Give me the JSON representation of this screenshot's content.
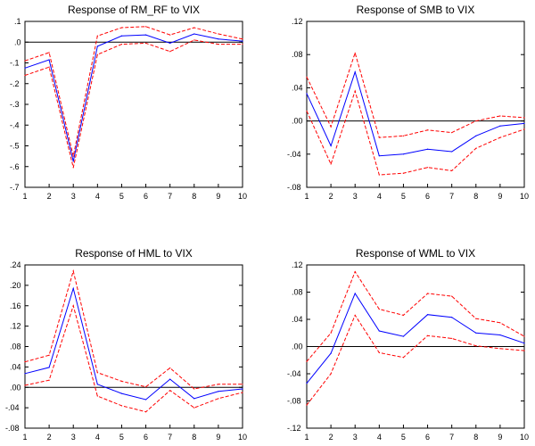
{
  "chart_data": [
    {
      "type": "line",
      "title": "Response of RM_RF to VIX",
      "x": [
        1,
        2,
        3,
        4,
        5,
        6,
        7,
        8,
        9,
        10
      ],
      "ylim": [
        -0.7,
        0.1
      ],
      "yticks": [
        ".1",
        ".0",
        "-.1",
        "-.2",
        "-.3",
        "-.4",
        "-.5",
        "-.6",
        "-.7"
      ],
      "ytick_values": [
        0.1,
        0.0,
        -0.1,
        -0.2,
        -0.3,
        -0.4,
        -0.5,
        -0.6,
        -0.7
      ],
      "series": [
        {
          "role": "response",
          "color": "#0000ff",
          "style": "solid",
          "values": [
            -0.125,
            -0.085,
            -0.575,
            -0.02,
            0.03,
            0.035,
            -0.005,
            0.04,
            0.015,
            0.005
          ]
        },
        {
          "role": "upper",
          "color": "#ff0000",
          "style": "dashed",
          "values": [
            -0.09,
            -0.05,
            -0.55,
            0.03,
            0.07,
            0.075,
            0.035,
            0.07,
            0.04,
            0.015
          ]
        },
        {
          "role": "lower",
          "color": "#ff0000",
          "style": "dashed",
          "values": [
            -0.16,
            -0.12,
            -0.605,
            -0.06,
            -0.01,
            -0.005,
            -0.045,
            0.01,
            -0.01,
            -0.01
          ]
        }
      ],
      "zero_line": true
    },
    {
      "type": "line",
      "title": "Response of SMB to VIX",
      "x": [
        1,
        2,
        3,
        4,
        5,
        6,
        7,
        8,
        9,
        10
      ],
      "ylim": [
        -0.08,
        0.12
      ],
      "yticks": [
        ".12",
        ".08",
        ".04",
        ".00",
        "-.04",
        "-.08"
      ],
      "ytick_values": [
        0.12,
        0.08,
        0.04,
        0.0,
        -0.04,
        -0.08
      ],
      "series": [
        {
          "role": "response",
          "color": "#0000ff",
          "style": "solid",
          "values": [
            0.033,
            -0.03,
            0.059,
            -0.042,
            -0.04,
            -0.034,
            -0.037,
            -0.018,
            -0.006,
            -0.003
          ]
        },
        {
          "role": "upper",
          "color": "#ff0000",
          "style": "dashed",
          "values": [
            0.053,
            -0.007,
            0.082,
            -0.02,
            -0.018,
            -0.011,
            -0.014,
            0.0,
            0.006,
            0.004
          ]
        },
        {
          "role": "lower",
          "color": "#ff0000",
          "style": "dashed",
          "values": [
            0.012,
            -0.052,
            0.036,
            -0.065,
            -0.063,
            -0.056,
            -0.06,
            -0.033,
            -0.02,
            -0.01
          ]
        }
      ],
      "zero_line": true
    },
    {
      "type": "line",
      "title": "Response of HML to VIX",
      "x": [
        1,
        2,
        3,
        4,
        5,
        6,
        7,
        8,
        9,
        10
      ],
      "ylim": [
        -0.08,
        0.24
      ],
      "yticks": [
        ".24",
        ".20",
        ".16",
        ".12",
        ".08",
        ".04",
        ".00",
        "-.04",
        "-.08"
      ],
      "ytick_values": [
        0.24,
        0.2,
        0.16,
        0.12,
        0.08,
        0.04,
        0.0,
        -0.04,
        -0.08
      ],
      "series": [
        {
          "role": "response",
          "color": "#0000ff",
          "style": "solid",
          "values": [
            0.027,
            0.039,
            0.194,
            0.006,
            -0.012,
            -0.024,
            0.016,
            -0.022,
            -0.008,
            -0.003
          ]
        },
        {
          "role": "upper",
          "color": "#ff0000",
          "style": "dashed",
          "values": [
            0.05,
            0.063,
            0.228,
            0.029,
            0.012,
            0.001,
            0.038,
            -0.003,
            0.006,
            0.006
          ]
        },
        {
          "role": "lower",
          "color": "#ff0000",
          "style": "dashed",
          "values": [
            0.004,
            0.014,
            0.16,
            -0.017,
            -0.036,
            -0.048,
            -0.006,
            -0.04,
            -0.022,
            -0.01
          ]
        }
      ],
      "zero_line": true
    },
    {
      "type": "line",
      "title": "Response of WML to VIX",
      "x": [
        1,
        2,
        3,
        4,
        5,
        6,
        7,
        8,
        9,
        10
      ],
      "ylim": [
        -0.12,
        0.12
      ],
      "yticks": [
        ".12",
        ".08",
        ".04",
        ".00",
        "-.04",
        "-.08",
        "-.12"
      ],
      "ytick_values": [
        0.12,
        0.08,
        0.04,
        0.0,
        -0.04,
        -0.08,
        -0.12
      ],
      "series": [
        {
          "role": "response",
          "color": "#0000ff",
          "style": "solid",
          "values": [
            -0.054,
            -0.01,
            0.078,
            0.023,
            0.015,
            0.047,
            0.043,
            0.02,
            0.017,
            0.005
          ]
        },
        {
          "role": "upper",
          "color": "#ff0000",
          "style": "dashed",
          "values": [
            -0.022,
            0.02,
            0.11,
            0.055,
            0.046,
            0.078,
            0.074,
            0.041,
            0.035,
            0.015
          ]
        },
        {
          "role": "lower",
          "color": "#ff0000",
          "style": "dashed",
          "values": [
            -0.086,
            -0.04,
            0.046,
            -0.009,
            -0.016,
            0.016,
            0.012,
            0.001,
            -0.003,
            -0.006
          ]
        }
      ],
      "zero_line": true
    }
  ]
}
